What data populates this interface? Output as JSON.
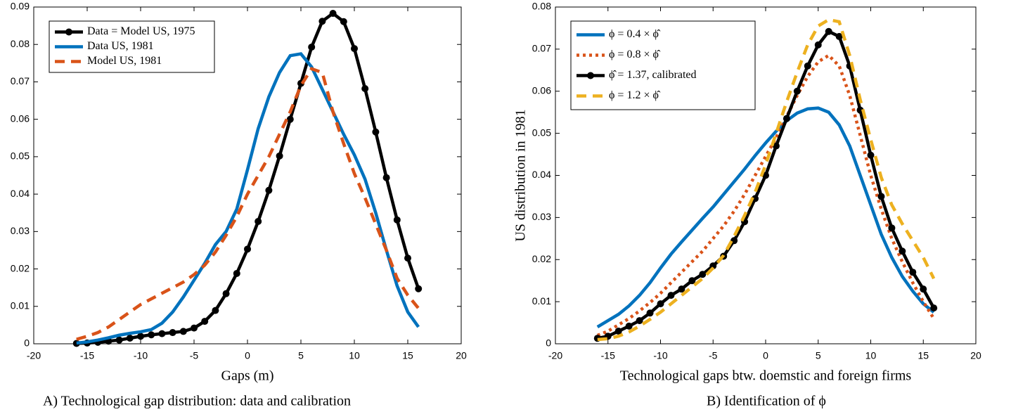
{
  "chart_data": [
    {
      "type": "line",
      "x_label": "Gaps (m)",
      "caption": "A) Technological gap distribution: data and calibration",
      "xlim": [
        -20,
        20
      ],
      "xticks": [
        -20,
        -15,
        -10,
        -5,
        0,
        5,
        10,
        15,
        20
      ],
      "ylim": [
        0,
        0.09
      ],
      "yticks": [
        0,
        0.01,
        0.02,
        0.03,
        0.04,
        0.05,
        0.06,
        0.07,
        0.08,
        0.09
      ],
      "legend": "upper left",
      "x": [
        -16,
        -15,
        -14,
        -13,
        -12,
        -11,
        -10,
        -9,
        -8,
        -7,
        -6,
        -5,
        -4,
        -3,
        -2,
        -1,
        0,
        1,
        2,
        3,
        4,
        5,
        6,
        7,
        8,
        9,
        10,
        11,
        12,
        13,
        14,
        15,
        16
      ],
      "series": [
        {
          "name": "Data = Model US, 1975",
          "color": "#000000",
          "dash": "solid",
          "marker": true,
          "values": [
            0.0001,
            0.0002,
            0.0004,
            0.0007,
            0.001,
            0.0015,
            0.002,
            0.0024,
            0.0027,
            0.003,
            0.0033,
            0.0042,
            0.006,
            0.0089,
            0.0134,
            0.0188,
            0.0253,
            0.0327,
            0.041,
            0.0502,
            0.06,
            0.0696,
            0.0793,
            0.0862,
            0.0883,
            0.0861,
            0.0789,
            0.0682,
            0.0566,
            0.0444,
            0.0331,
            0.0229,
            0.0147
          ]
        },
        {
          "name": "Data US, 1981",
          "color": "#0072bd",
          "dash": "solid",
          "marker": false,
          "values": [
            0.0002,
            0.0005,
            0.001,
            0.0016,
            0.0023,
            0.0028,
            0.0032,
            0.0038,
            0.0055,
            0.0085,
            0.0125,
            0.017,
            0.0215,
            0.0265,
            0.03,
            0.036,
            0.0465,
            0.0575,
            0.066,
            0.0725,
            0.077,
            0.0775,
            0.074,
            0.068,
            0.062,
            0.056,
            0.0505,
            0.044,
            0.035,
            0.025,
            0.0155,
            0.0085,
            0.0045
          ]
        },
        {
          "name": "Model US, 1981",
          "color": "#d95319",
          "dash": "dashed",
          "marker": false,
          "values": [
            0.0012,
            0.002,
            0.003,
            0.0045,
            0.0065,
            0.0085,
            0.0105,
            0.012,
            0.0135,
            0.015,
            0.0165,
            0.0185,
            0.021,
            0.0245,
            0.029,
            0.034,
            0.04,
            0.045,
            0.05,
            0.056,
            0.062,
            0.069,
            0.0735,
            0.0725,
            0.062,
            0.0535,
            0.0455,
            0.039,
            0.032,
            0.025,
            0.0175,
            0.013,
            0.0095
          ]
        }
      ]
    },
    {
      "type": "line",
      "x_label": "Technological gaps btw. doemstic and foreign firms",
      "y_label": "US distribution in 1981",
      "caption": "B) Identification of ϕ",
      "xlim": [
        -20,
        20
      ],
      "xticks": [
        -20,
        -15,
        -10,
        -5,
        0,
        5,
        10,
        15,
        20
      ],
      "ylim": [
        0,
        0.08
      ],
      "yticks": [
        0,
        0.01,
        0.02,
        0.03,
        0.04,
        0.05,
        0.06,
        0.07,
        0.08
      ],
      "legend": "upper left",
      "x": [
        -16,
        -15,
        -14,
        -13,
        -12,
        -11,
        -10,
        -9,
        -8,
        -7,
        -6,
        -5,
        -4,
        -3,
        -2,
        -1,
        0,
        1,
        2,
        3,
        4,
        5,
        6,
        7,
        8,
        9,
        10,
        11,
        12,
        13,
        14,
        15,
        16
      ],
      "series": [
        {
          "name": "ϕ = 0.4 × ϕ̂",
          "color": "#0072bd",
          "dash": "solid",
          "marker": false,
          "values": [
            0.004,
            0.0055,
            0.007,
            0.009,
            0.0115,
            0.0145,
            0.018,
            0.0213,
            0.0242,
            0.027,
            0.0298,
            0.0325,
            0.0355,
            0.0385,
            0.0415,
            0.0447,
            0.0477,
            0.0505,
            0.053,
            0.0548,
            0.0558,
            0.056,
            0.055,
            0.052,
            0.047,
            0.04,
            0.033,
            0.026,
            0.0205,
            0.016,
            0.0125,
            0.0095,
            0.0075
          ]
        },
        {
          "name": "ϕ = 0.8 × ϕ̂",
          "color": "#d95319",
          "dash": "dotted",
          "marker": false,
          "values": [
            0.002,
            0.003,
            0.0045,
            0.006,
            0.0078,
            0.0098,
            0.012,
            0.0145,
            0.017,
            0.0195,
            0.022,
            0.025,
            0.028,
            0.0315,
            0.0355,
            0.04,
            0.0445,
            0.049,
            0.054,
            0.059,
            0.0635,
            0.067,
            0.0685,
            0.066,
            0.059,
            0.0495,
            0.04,
            0.032,
            0.025,
            0.0195,
            0.0145,
            0.01,
            0.006
          ]
        },
        {
          "name": "ϕ̂ = 1.37, calibrated",
          "color": "#000000",
          "dash": "solid",
          "marker": true,
          "values": [
            0.0013,
            0.0018,
            0.003,
            0.0042,
            0.0055,
            0.0073,
            0.0095,
            0.0115,
            0.013,
            0.015,
            0.0165,
            0.0185,
            0.0208,
            0.0245,
            0.029,
            0.0345,
            0.04,
            0.047,
            0.0535,
            0.06,
            0.066,
            0.071,
            0.0742,
            0.073,
            0.066,
            0.0555,
            0.0448,
            0.035,
            0.0275,
            0.022,
            0.017,
            0.013,
            0.0085
          ]
        },
        {
          "name": "ϕ = 1.2 × ϕ̂",
          "color": "#edb120",
          "dash": "dashed",
          "marker": false,
          "values": [
            0.001,
            0.0012,
            0.0018,
            0.0028,
            0.0042,
            0.0058,
            0.0075,
            0.0095,
            0.0115,
            0.0135,
            0.0155,
            0.018,
            0.021,
            0.0255,
            0.0305,
            0.036,
            0.0425,
            0.05,
            0.0575,
            0.0645,
            0.071,
            0.0755,
            0.077,
            0.0765,
            0.0685,
            0.058,
            0.0485,
            0.0395,
            0.033,
            0.0285,
            0.0245,
            0.0205,
            0.0155
          ]
        }
      ]
    }
  ]
}
